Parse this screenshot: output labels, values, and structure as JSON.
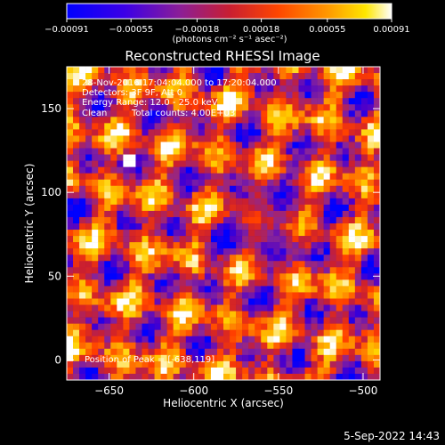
{
  "chart_data": {
    "type": "heatmap",
    "title": "Reconstructed RHESSI Image",
    "xlabel": "Heliocentric X (arcsec)",
    "ylabel": "Heliocentric Y (arcsec)",
    "xlim": [
      -675,
      -490
    ],
    "ylim": [
      -12,
      175
    ],
    "xticks": [
      -650,
      -600,
      -550,
      -500
    ],
    "xtick_labels": [
      "−650",
      "−600",
      "−550",
      "−500"
    ],
    "yticks": [
      0,
      50,
      100,
      150
    ],
    "ytick_labels": [
      "0",
      "50",
      "100",
      "150"
    ],
    "colorbar": {
      "range": [
        -0.00091,
        0.00091
      ],
      "ticks": [
        -0.00091,
        -0.00055,
        -0.00018,
        0.00018,
        0.00055,
        0.00091
      ],
      "tick_labels": [
        "−0.00091",
        "−0.00055",
        "−0.00018",
        "0.00018",
        "0.00055",
        "0.00091"
      ],
      "unit_label": "(photons cm⁻² s⁻¹ asec⁻²)",
      "colormap": "blue-purple-red-orange-yellow-white"
    },
    "grid": {
      "nx": 50,
      "ny": 50,
      "peak_position": [
        -638,
        119
      ],
      "peak_value": 0.00091,
      "background": "ringing pattern (noise-like), dimmer toward center-right"
    },
    "annotations": {
      "time_range": "28-Nov-2016 17:04:04.000 to 17:20:04.000",
      "detectors": "Detectors: 3F 9F, Att 0",
      "energy_range": "Energy Range: 12.0 - 25.0 keV",
      "method": "Clean",
      "total_counts": "Total counts: 4.00E+03",
      "peak_text": "Position of Peak = [-638,119]"
    },
    "footer_date": "5-Sep-2022 14:43"
  },
  "colors": {
    "background": "#000000",
    "foreground": "#ffffff",
    "colormap_stops": [
      "#0000ff",
      "#5000c8",
      "#8c2896",
      "#c81e32",
      "#ff3c00",
      "#ff8c00",
      "#ffd200",
      "#ffffff"
    ]
  }
}
